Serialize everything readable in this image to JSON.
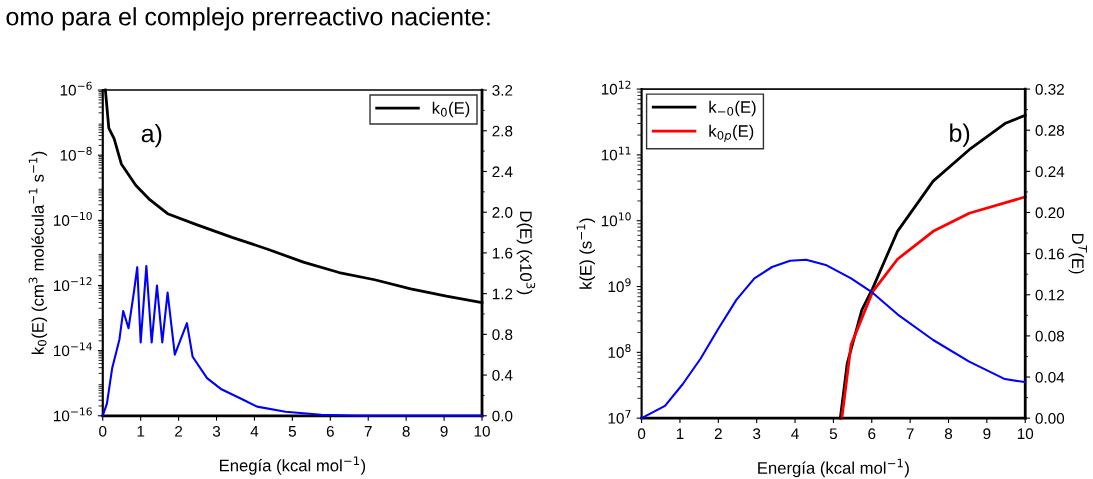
{
  "chart_data": [
    {
      "type": "line",
      "xlabel": "Enegía (kcal mol$^{−1}$)",
      "ylabel": "k$_{0}$(E) (cm$^{3}$ molécula$^{−1}$ s$^{−1}$)",
      "y2label": "D(E) (x10$^{3}$)",
      "annotations": [
        "a)",
        "omo para el complejo prerreactivo naciente:"
      ],
      "log": true,
      "legend": "top right",
      "grid": false,
      "xlim": [
        0,
        10
      ],
      "xticks": [
        0,
        1,
        2,
        3,
        4,
        5,
        6,
        7,
        8,
        9,
        10
      ],
      "ylim": [
        1e-16,
        1e-06
      ],
      "yticks": [
        {
          "value": 1e-16,
          "label": "10$^{−16}$"
        },
        {
          "value": 1e-14,
          "label": "10$^{−14}$"
        },
        {
          "value": 1e-12,
          "label": "10$^{−12}$"
        },
        {
          "value": 1e-10,
          "label": "10$^{−10}$"
        },
        {
          "value": 1e-08,
          "label": "10$^{−8}$"
        },
        {
          "value": 1e-06,
          "label": "10$^{−6}$"
        }
      ],
      "y2lim": [
        0,
        3.2
      ],
      "y2ticks": [
        {
          "value": 0,
          "label": "0.0"
        },
        0.4,
        0.8,
        1.2,
        1.6,
        {
          "value": 2,
          "label": "2.0"
        },
        2.4,
        2.8,
        3.2
      ],
      "series": [
        {
          "name": "k$_{0}$(E)",
          "color": "#000000",
          "x": [
            0.07,
            0.16,
            0.3,
            0.49,
            0.87,
            1.24,
            1.71,
            2.47,
            3.41,
            4.35,
            5.29,
            6.23,
            7.17,
            8.12,
            9.06,
            10
          ],
          "values": [
            1e-06,
            6.8e-08,
            3.2e-08,
            5.4e-09,
            1.2e-09,
            4.3e-10,
            1.6e-10,
            7.4e-11,
            3e-11,
            1.3e-11,
            5.2e-12,
            2.5e-12,
            1.5e-12,
            7.9e-13,
            4.7e-13,
            3e-13
          ]
        },
        {
          "color": "#0000ff",
          "axis": "y2",
          "x": [
            0,
            0.11,
            0.25,
            0.44,
            0.54,
            0.68,
            0.82,
            0.91,
            1.0,
            1.15,
            1.29,
            1.43,
            1.57,
            1.71,
            1.9,
            2.22,
            2.37,
            2.75,
            3.13,
            3.69,
            4.07,
            4.82,
            5.76,
            6.7,
            10
          ],
          "values": [
            0,
            0.12,
            0.47,
            0.75,
            1.03,
            0.86,
            1.21,
            1.46,
            0.72,
            1.47,
            0.72,
            1.28,
            0.72,
            1.21,
            0.6,
            0.91,
            0.58,
            0.37,
            0.26,
            0.16,
            0.09,
            0.04,
            0.01,
            0,
            0
          ]
        }
      ]
    },
    {
      "type": "line",
      "xlabel": "Energía (kcal mol$^{−1}$)",
      "ylabel": "k(E) (s$^{−1}$)",
      "y2label": "D$^{T}$(E)",
      "annotations": [
        "b)"
      ],
      "log": true,
      "legend": "top left",
      "grid": false,
      "xlim": [
        0,
        10
      ],
      "xticks": [
        0,
        1,
        2,
        3,
        4,
        5,
        6,
        7,
        8,
        9,
        10
      ],
      "ylim": [
        10000000.0,
        1000000000000.0
      ],
      "yticks": [
        {
          "value": 10000000.0,
          "label": "10$^{7}$"
        },
        {
          "value": 100000000.0,
          "label": "10$^{8}$"
        },
        {
          "value": 1000000000.0,
          "label": "10$^{9}$"
        },
        {
          "value": 10000000000.0,
          "label": "10$^{10}$"
        },
        {
          "value": 100000000000.0,
          "label": "10$^{11}$"
        },
        {
          "value": 1000000000000.0,
          "label": "10$^{12}$"
        }
      ],
      "y2lim": [
        0,
        0.32
      ],
      "y2ticks": [
        {
          "value": 0,
          "label": "0.00"
        },
        {
          "value": 0.04,
          "label": "0.04"
        },
        {
          "value": 0.08,
          "label": "0.08"
        },
        {
          "value": 0.12,
          "label": "0.12"
        },
        {
          "value": 0.16,
          "label": "0.16"
        },
        {
          "value": 0.2,
          "label": "0.20"
        },
        {
          "value": 0.24,
          "label": "0.24"
        },
        {
          "value": 0.28,
          "label": "0.28"
        },
        {
          "value": 0.32,
          "label": "0.32"
        }
      ],
      "series": [
        {
          "name": "k$_{−0}$(E)",
          "color": "#000000",
          "x": [
            5.18,
            5.36,
            5.74,
            6.02,
            6.67,
            7.6,
            8.54,
            9.47,
            10
          ],
          "values": [
            10000000.0,
            68000000.0,
            440000000.0,
            930000000.0,
            6900000000.0,
            40000000000.0,
            120000000000.0,
            300000000000.0,
            400000000000.0
          ]
        },
        {
          "name": "k$_{0p}$(E)",
          "color": "#ff0000",
          "x": [
            5.22,
            5.46,
            6.02,
            6.67,
            7.6,
            8.54,
            10
          ],
          "values": [
            10000000.0,
            130000000.0,
            830000000.0,
            2600000000.0,
            6900000000.0,
            13000000000.0,
            23000000000.0
          ]
        },
        {
          "color": "#0000ff",
          "axis": "y2",
          "x": [
            0,
            0.61,
            1.07,
            1.54,
            2.0,
            2.47,
            2.94,
            3.4,
            3.87,
            4.29,
            4.8,
            5.46,
            6.02,
            6.67,
            7.6,
            8.54,
            9.47,
            10
          ],
          "values": [
            0,
            0.012,
            0.033,
            0.058,
            0.087,
            0.115,
            0.136,
            0.147,
            0.153,
            0.154,
            0.149,
            0.136,
            0.122,
            0.101,
            0.076,
            0.055,
            0.038,
            0.035
          ]
        }
      ]
    }
  ]
}
